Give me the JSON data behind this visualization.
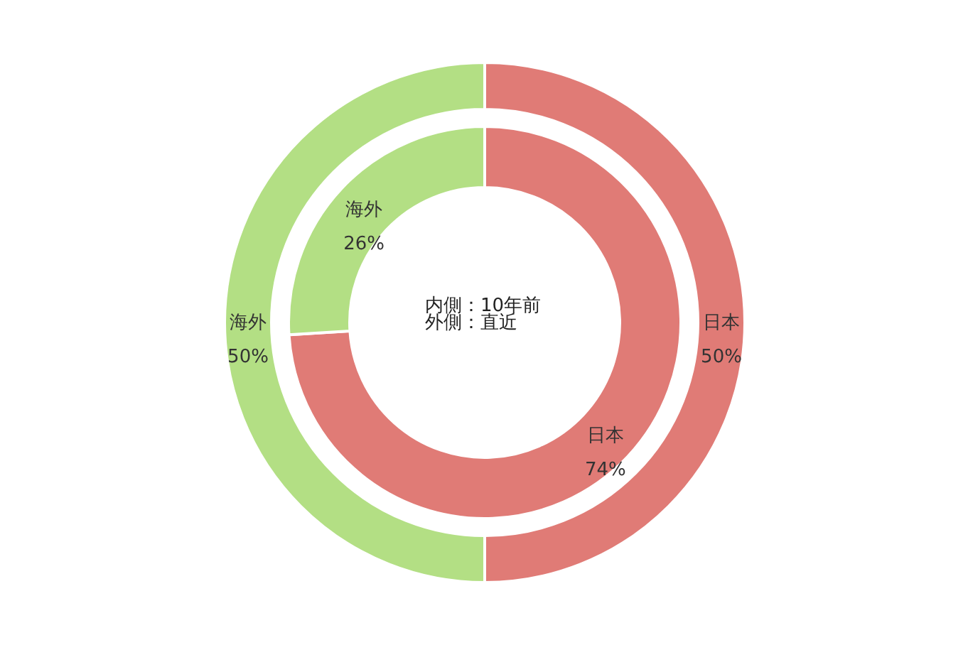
{
  "chart_data": {
    "type": "donut",
    "categories": [
      "日本",
      "海外"
    ],
    "series": [
      {
        "values": [
          74,
          26
        ],
        "value_labels": [
          "74%",
          "26%"
        ],
        "colors": [
          "#e07b76",
          "#b3df84"
        ]
      },
      {
        "values": [
          50,
          50
        ],
        "value_labels": [
          "50%",
          "50%"
        ],
        "colors": [
          "#e07b76",
          "#b3df84"
        ]
      }
    ],
    "annotations": [
      "内側：10年前",
      "外側：直近"
    ]
  }
}
